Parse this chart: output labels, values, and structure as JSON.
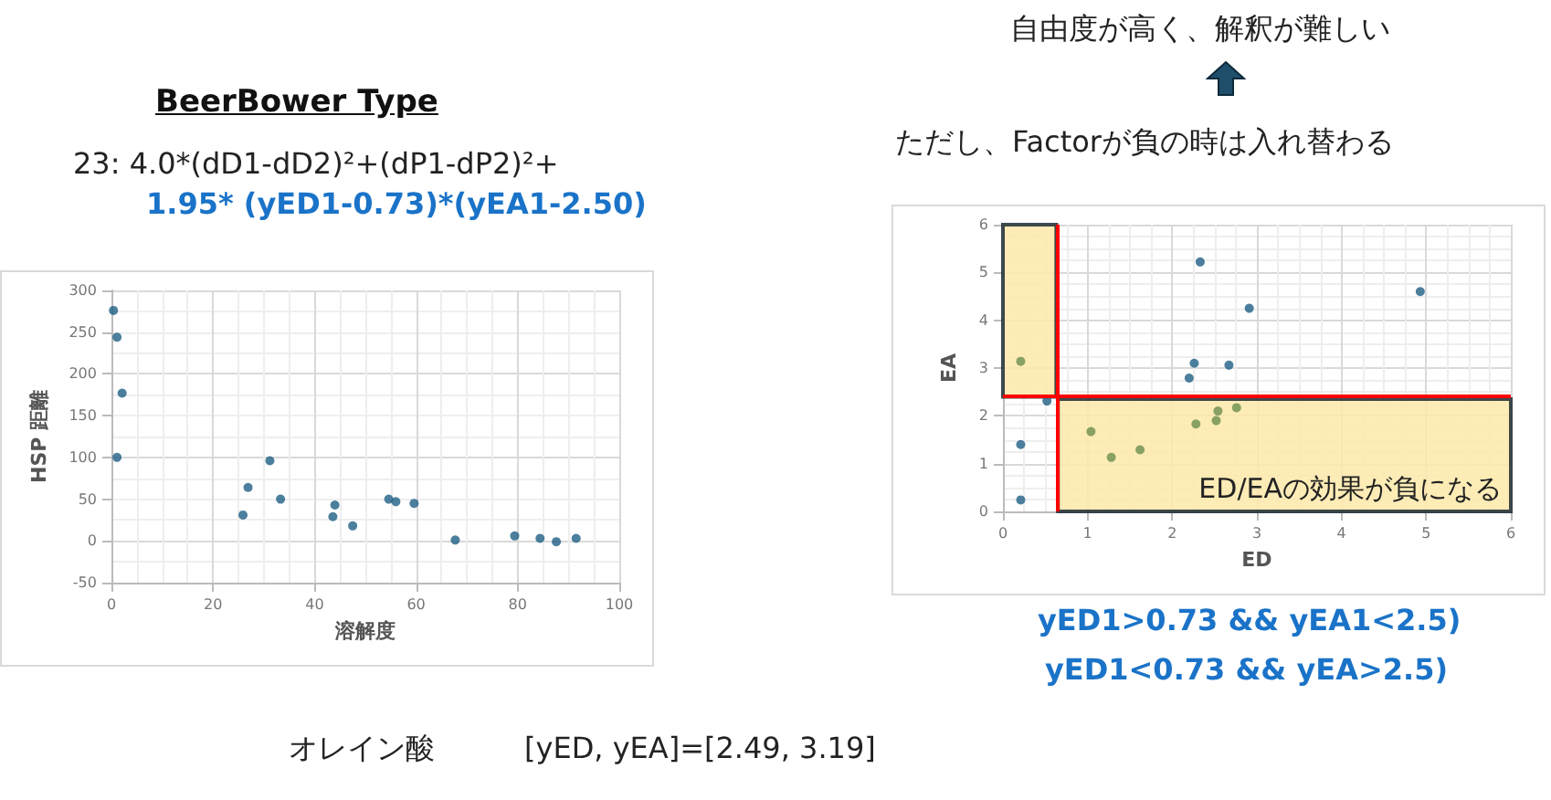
{
  "chart_data": [
    {
      "type": "scatter",
      "title": "BeerBower Type",
      "xlabel": "溶解度",
      "ylabel": "HSP 距離",
      "xlim": [
        0,
        100
      ],
      "xticks": [
        0,
        20,
        40,
        60,
        80,
        100
      ],
      "ylim": [
        -50,
        300
      ],
      "yticks": [
        -50,
        0,
        50,
        100,
        150,
        200,
        250,
        300
      ],
      "grid": true,
      "marker": "circle",
      "annotations": [
        "23: 4.0*(dD1-dD2)²+(dP1-dP2)²+",
        "1.95* (yED1-0.73)*(yEA1-2.50)",
        "オレイン酸",
        "[yED, yEA]=[2.49, 3.19]"
      ],
      "series": [
        {
          "color": "#1f5f85",
          "x": [
            0.4,
            1.1,
            2.1,
            1.1,
            25.9,
            26.9,
            31.2,
            33.3,
            43.6,
            44,
            47.5,
            54.6,
            56,
            59.6,
            67.7,
            79.4,
            84.4,
            87.6,
            91.5
          ],
          "values": [
            276,
            244,
            177,
            100,
            31,
            64,
            96,
            50,
            29,
            43,
            18,
            50,
            47,
            45,
            1,
            6,
            3,
            -1,
            3
          ]
        }
      ]
    },
    {
      "type": "scatter",
      "xlabel": "ED",
      "ylabel": "EA",
      "xlim": [
        0,
        6
      ],
      "xticks": [
        0,
        1,
        2,
        3,
        4,
        5,
        6
      ],
      "ylim": [
        0,
        6
      ],
      "yticks": [
        0,
        1,
        2,
        3,
        4,
        5,
        6
      ],
      "grid": true,
      "marker": "circle",
      "annotations": [
        "自由度が高く、解釈が難しい",
        "ただし、Factorが負の時は入れ替わる",
        "yED1>0.73 && yEA1<2.5)",
        "yED1<0.73 && yEA>2.5)"
      ],
      "ref_lines": [
        {
          "axis": "x",
          "value": 0.65,
          "color": "#ff0000"
        },
        {
          "axis": "y",
          "value": 2.4,
          "color": "#ff0000"
        }
      ],
      "bands": [
        {
          "axis": "x",
          "from": 0,
          "to": 0.63,
          "color": "#fde9a9"
        },
        {
          "axis": "y",
          "from": 0,
          "to": 2.35,
          "color": "#fde9a9",
          "label": "ED/EAの効果が負になる"
        }
      ],
      "series": [
        {
          "color": "#1f5f85",
          "x": [
            2.33,
            2.91,
            4.93,
            2.26,
            2.2,
            2.64,
            2.67,
            0.21,
            0.21,
            0.52
          ],
          "values": [
            5.22,
            4.25,
            4.6,
            3.1,
            2.79,
            null,
            3.06,
            1.4,
            0.24,
            2.31
          ]
        },
        {
          "color": "#6b8e4e",
          "x": [
            0.21,
            1.04,
            1.28,
            1.62,
            2.28,
            2.52,
            2.54,
            2.76
          ],
          "values": [
            3.14,
            1.67,
            1.13,
            1.29,
            1.83,
            1.9,
            2.1,
            2.17
          ]
        }
      ]
    }
  ]
}
